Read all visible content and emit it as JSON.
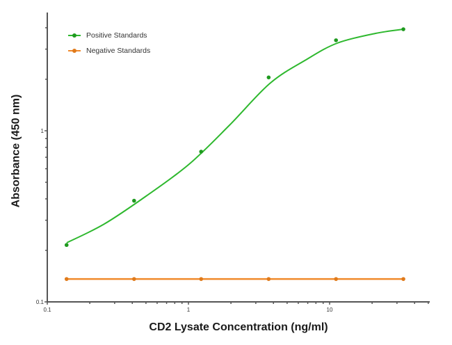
{
  "chart_data": {
    "type": "line",
    "title": "",
    "xlabel": "CD2 Lysate Concentration (ng/ml)",
    "ylabel": "Absorbance (450 nm)",
    "x_scale": "log",
    "y_scale": "log",
    "xlim": [
      0.1,
      50
    ],
    "ylim": [
      0.1,
      4.9
    ],
    "x_tick_labels": [
      "0.1",
      "1",
      "10"
    ],
    "y_tick_labels": [
      "0.1",
      "1"
    ],
    "grid": false,
    "legend_position": "upper-left",
    "series": [
      {
        "name": "Positive Standards",
        "color": "#2eb82e",
        "curve": "sigmoidal fit",
        "x": [
          0.137,
          0.412,
          1.23,
          3.7,
          11.1,
          33.3
        ],
        "y": [
          0.215,
          0.39,
          0.755,
          2.05,
          3.38,
          3.92
        ]
      },
      {
        "name": "Negative Standards",
        "color": "#f0892a",
        "curve": "straight",
        "x": [
          0.137,
          0.412,
          1.23,
          3.7,
          11.1,
          33.3
        ],
        "y": [
          0.136,
          0.136,
          0.136,
          0.136,
          0.136,
          0.136
        ]
      }
    ]
  },
  "labels": {
    "xlabel": "CD2 Lysate Concentration (ng/ml)",
    "ylabel": "Absorbance (450 nm)",
    "legend": [
      "Positive Standards",
      "Negative Standards"
    ]
  }
}
